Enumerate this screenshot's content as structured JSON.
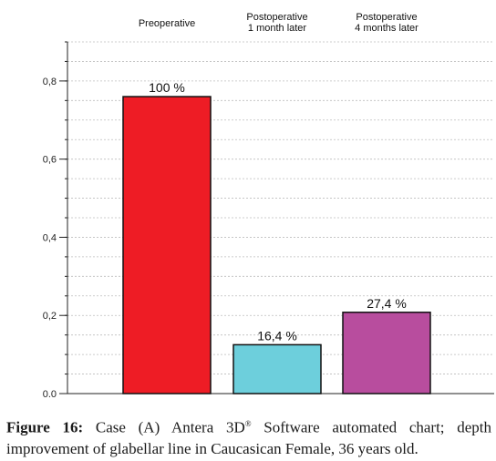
{
  "chart_data": {
    "type": "bar",
    "categories": [
      {
        "lines": [
          "Preoperative"
        ]
      },
      {
        "lines": [
          "Postoperative",
          "1 month later"
        ]
      },
      {
        "lines": [
          "Postoperative",
          "4 months later"
        ]
      }
    ],
    "values": [
      0.76,
      0.125,
      0.208
    ],
    "data_labels": [
      "100 %",
      "16,4 %",
      "27,4 %"
    ],
    "colors": [
      "#ee1c25",
      "#6dcfdc",
      "#b84d9e"
    ],
    "ylim": [
      0,
      0.9
    ],
    "yticks": [
      {
        "value": 0.0,
        "label": "0.0"
      },
      {
        "value": 0.2,
        "label": "0,2"
      },
      {
        "value": 0.4,
        "label": "0,4"
      },
      {
        "value": 0.6,
        "label": "0,6"
      },
      {
        "value": 0.8,
        "label": "0,8"
      }
    ],
    "minor_step": 0.05,
    "grid": true,
    "title": "",
    "xlabel": "",
    "ylabel": ""
  },
  "caption": {
    "label": "Figure 16:",
    "text_before": " Case (A) Antera 3D",
    "registered": "®",
    "text_after": " Software automated chart; depth improvement of glabellar line in Caucasican Female, 36 years old."
  }
}
